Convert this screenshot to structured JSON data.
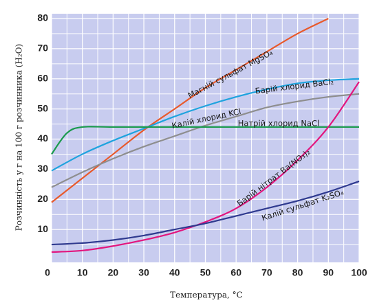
{
  "chart_data": {
    "type": "line",
    "x_label": "Температура, °С",
    "y_label": "Розчинність у г на 100 г розчинника (H₂O)",
    "xlim": [
      0,
      100
    ],
    "ylim": [
      0,
      80
    ],
    "xticks": [
      0,
      10,
      20,
      30,
      40,
      50,
      60,
      70,
      80,
      90,
      100
    ],
    "yticks": [
      10,
      20,
      30,
      40,
      50,
      60,
      70,
      80
    ],
    "minor_xticks": [
      5,
      15,
      25,
      35,
      45,
      55,
      65,
      75,
      85,
      95
    ],
    "minor_yticks": [
      5,
      15,
      25,
      35,
      45,
      55,
      65,
      75
    ],
    "grid": true,
    "background": "#c8ccef",
    "grid_color": "#ffffff",
    "series": [
      {
        "name": "Магній сульфат MgSO₄",
        "color": "#e8592b",
        "x": [
          0,
          10,
          20,
          30,
          40,
          50,
          60,
          70,
          80,
          90
        ],
        "values": [
          19,
          27,
          35,
          43,
          50,
          57,
          63,
          69,
          75,
          80
        ]
      },
      {
        "name": "Барій хлорид BaCl₂",
        "color": "#1ea3de",
        "x": [
          0,
          10,
          20,
          30,
          40,
          50,
          60,
          70,
          80,
          90,
          100
        ],
        "values": [
          29.5,
          35,
          39.5,
          43.5,
          47.5,
          51,
          54,
          56.5,
          58.5,
          59.5,
          60
        ]
      },
      {
        "name": "Калій хлорид KCl",
        "color": "#8e8e8e",
        "x": [
          0,
          10,
          20,
          30,
          40,
          50,
          60,
          70,
          80,
          90,
          100
        ],
        "values": [
          24,
          29,
          33.5,
          37.5,
          41,
          44.5,
          47.5,
          50.5,
          52.5,
          54,
          55
        ]
      },
      {
        "name": "Натрій хлорид NaCl",
        "color": "#1a9a4c",
        "x": [
          0,
          5,
          10,
          20,
          40,
          60,
          80,
          100
        ],
        "values": [
          35,
          42,
          44,
          44,
          44,
          44,
          44,
          44
        ]
      },
      {
        "name": "Барій нітрат Ba(NO₃)₂",
        "color": "#e2167e",
        "x": [
          0,
          10,
          20,
          30,
          40,
          50,
          60,
          70,
          80,
          90,
          100
        ],
        "values": [
          2.5,
          3,
          4.5,
          6.5,
          9,
          12.5,
          17,
          24,
          33,
          44,
          59
        ]
      },
      {
        "name": "Калій сульфат K₂SO₄",
        "color": "#2f3a8f",
        "x": [
          0,
          10,
          20,
          30,
          40,
          50,
          60,
          70,
          80,
          90,
          100
        ],
        "values": [
          5,
          5.5,
          6.5,
          8,
          10,
          12,
          14.5,
          17,
          19.5,
          22.5,
          26
        ]
      }
    ]
  }
}
